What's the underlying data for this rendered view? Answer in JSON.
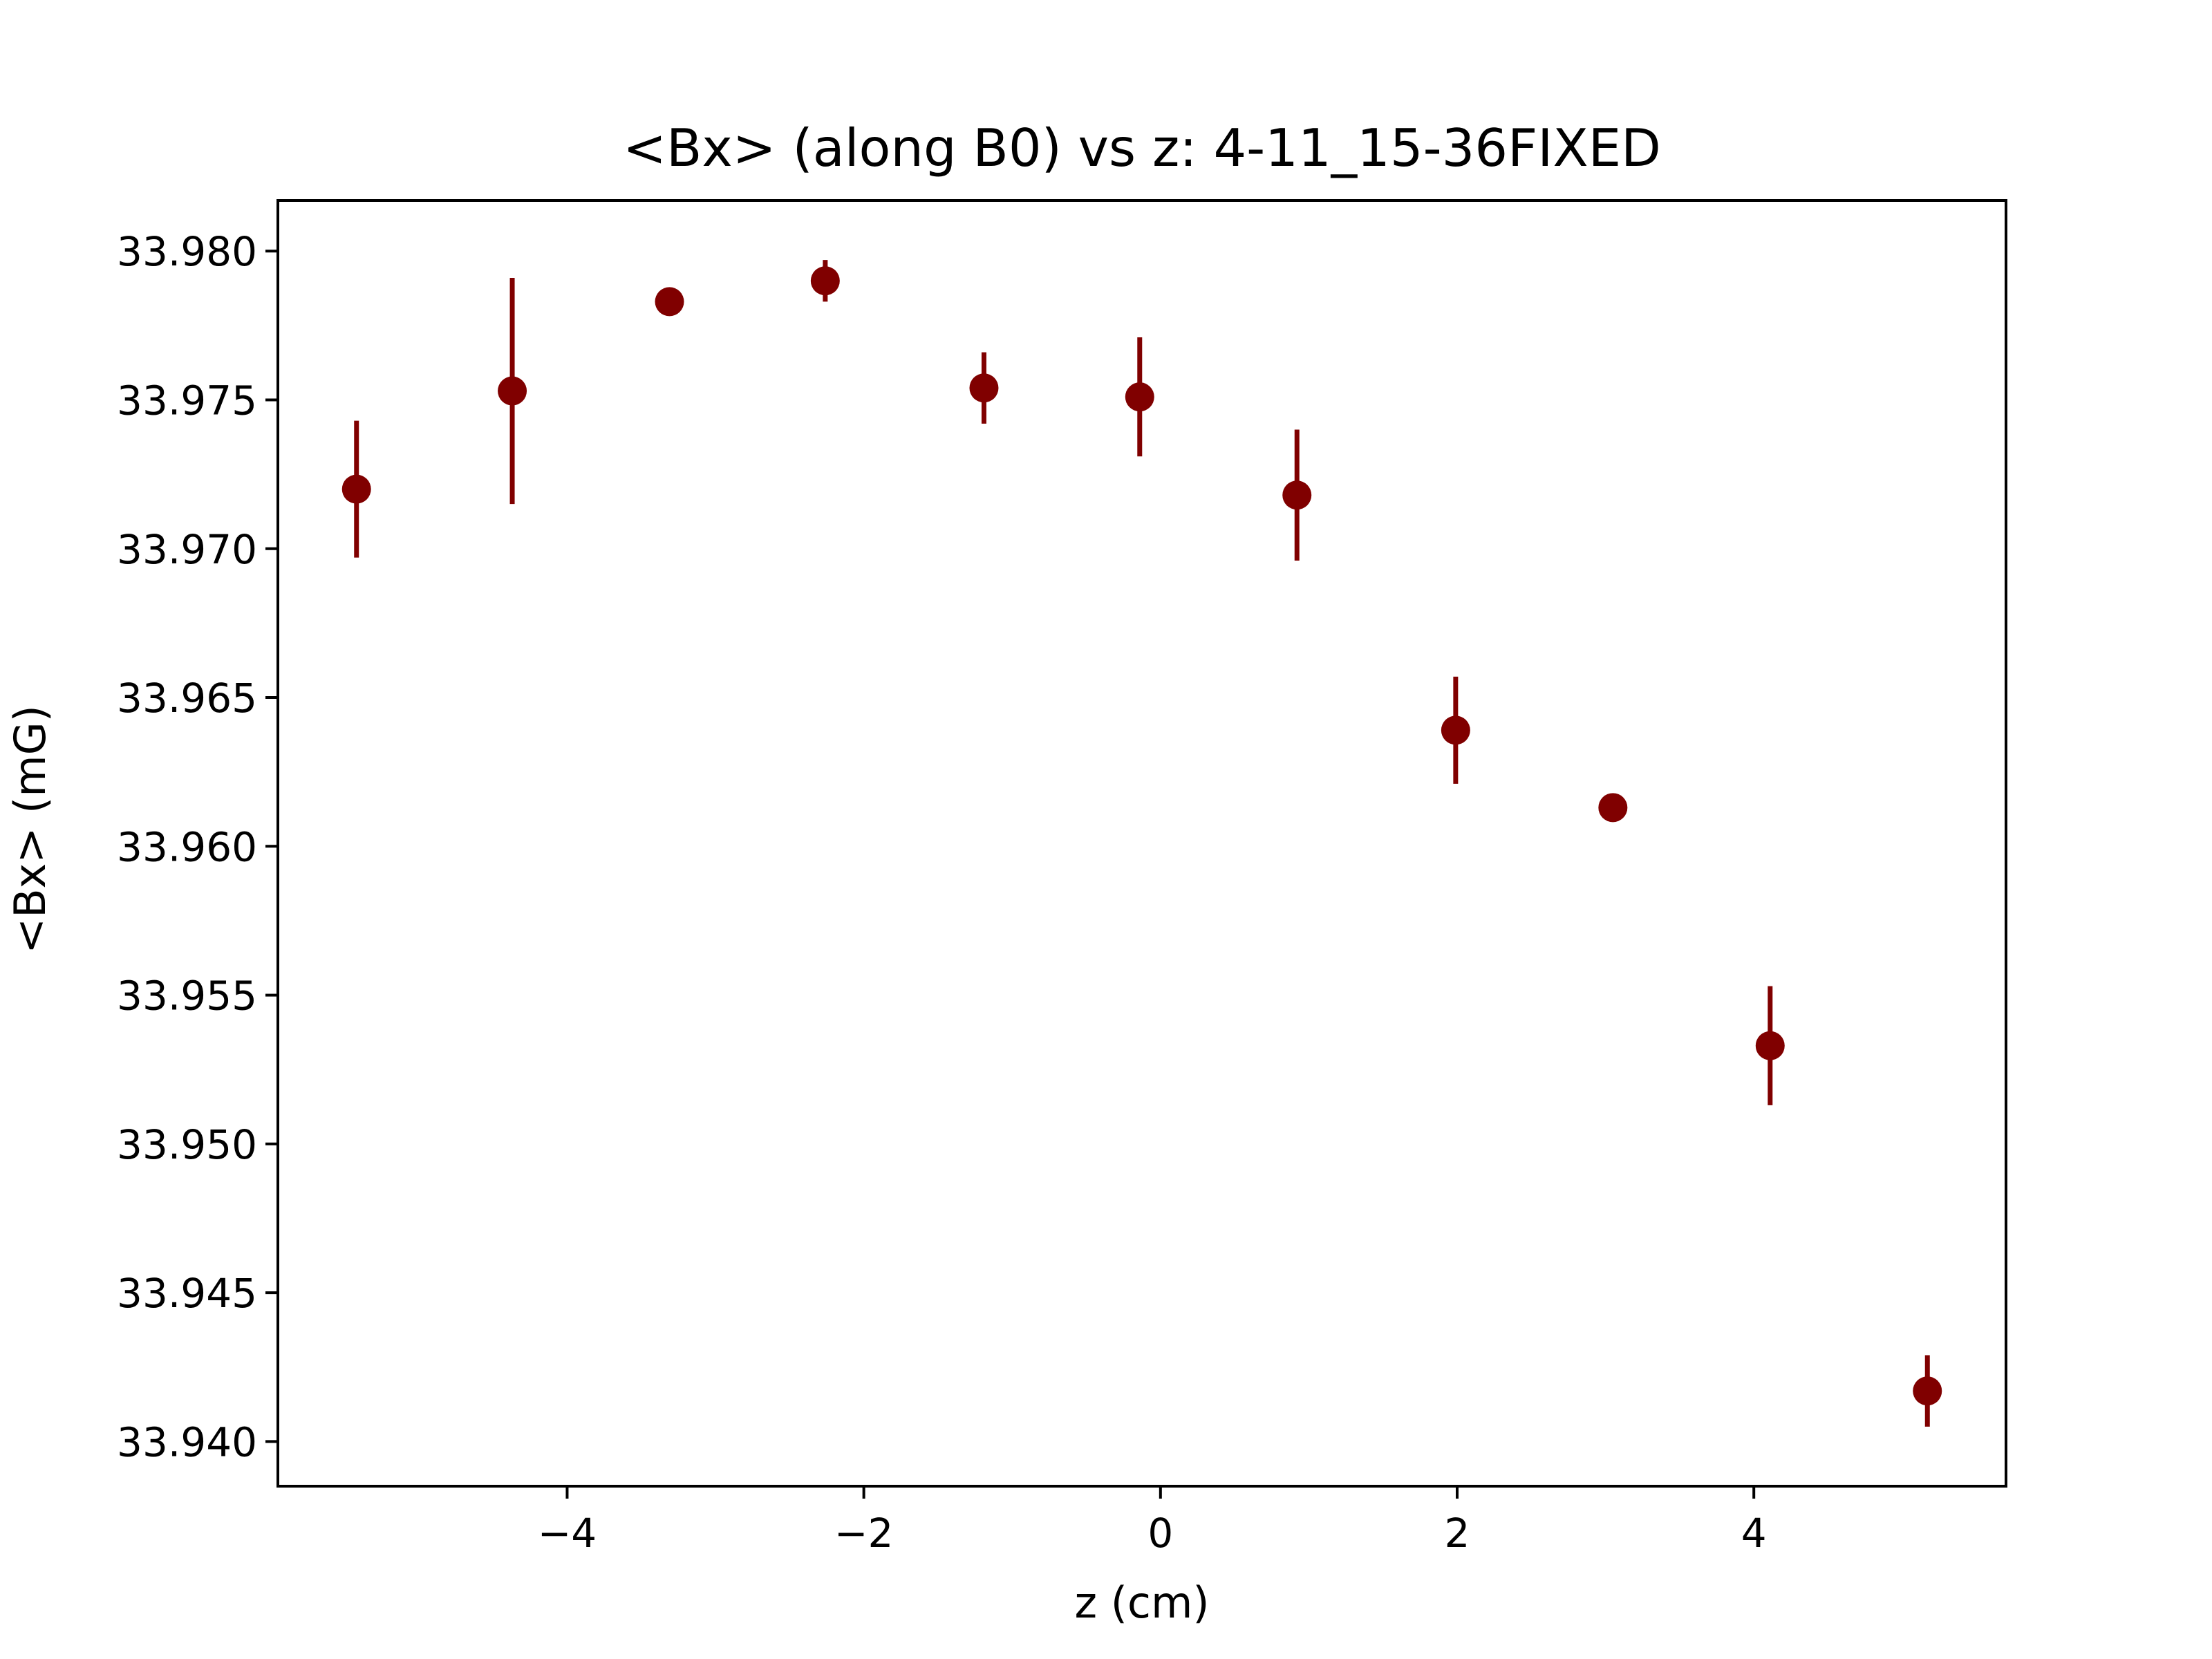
{
  "chart_data": {
    "type": "scatter",
    "title": "<Bx> (along B0) vs z: 4-11_15-36FIXED",
    "xlabel": "z (cm)",
    "ylabel": "<Bx> (mG)",
    "xlim": [
      -5.95,
      5.7
    ],
    "ylim": [
      33.9385,
      33.9817
    ],
    "xticks": [
      -4,
      -2,
      0,
      2,
      4
    ],
    "xtick_labels": [
      "−4",
      "−2",
      "0",
      "2",
      "4"
    ],
    "yticks": [
      33.94,
      33.945,
      33.95,
      33.955,
      33.96,
      33.965,
      33.97,
      33.975,
      33.98
    ],
    "ytick_labels": [
      "33.940",
      "33.945",
      "33.950",
      "33.955",
      "33.960",
      "33.965",
      "33.970",
      "33.975",
      "33.980"
    ],
    "grid": false,
    "legend": "none",
    "marker_color": "#800000",
    "series": [
      {
        "x": [
          -5.42,
          -4.37,
          -3.31,
          -2.26,
          -1.19,
          -0.14,
          0.92,
          1.99,
          3.05,
          4.11,
          5.17
        ],
        "y": [
          33.972,
          33.9753,
          33.9783,
          33.979,
          33.9754,
          33.9751,
          33.9718,
          33.9639,
          33.9613,
          33.9533,
          33.9417
        ],
        "yerr": [
          0.0023,
          0.0038,
          0.0002,
          0.0007,
          0.0012,
          0.002,
          0.0022,
          0.0018,
          0.0002,
          0.002,
          0.0012
        ]
      }
    ]
  }
}
